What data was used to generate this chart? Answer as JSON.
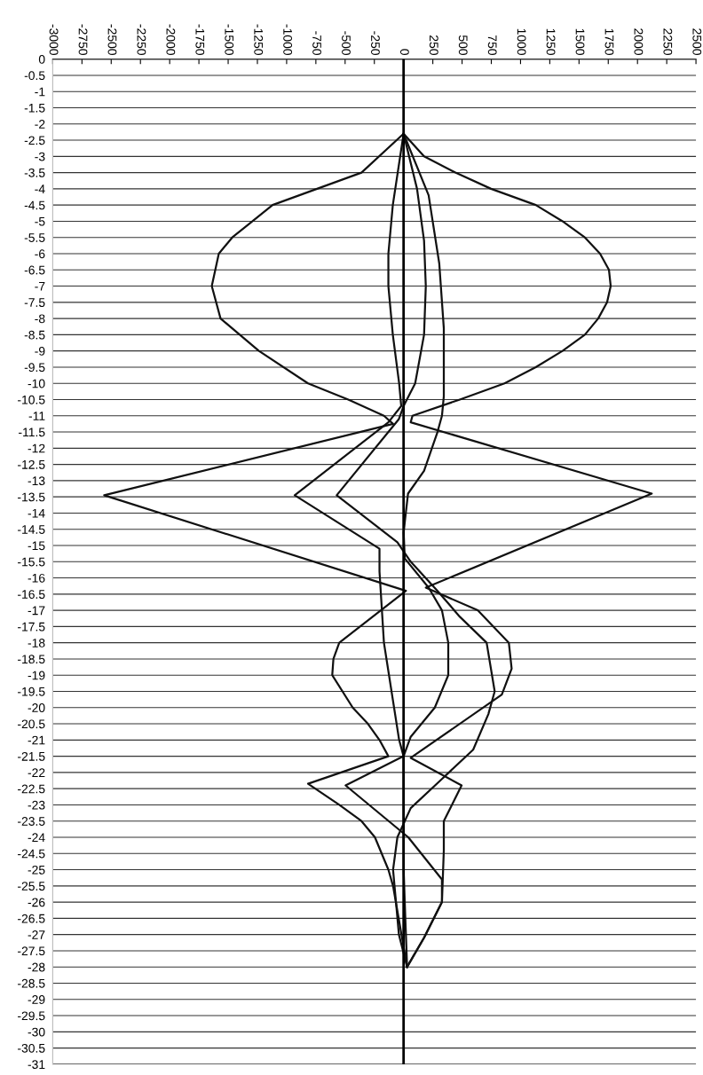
{
  "chart_data": {
    "type": "line",
    "xlim": [
      -3000,
      2500
    ],
    "xticks": [
      -3000,
      -2750,
      -2500,
      -2250,
      -2000,
      -1750,
      -1500,
      -1250,
      -1000,
      -750,
      -500,
      -250,
      0,
      250,
      500,
      750,
      1000,
      1250,
      1500,
      1750,
      2000,
      2250,
      2500
    ],
    "ylim": [
      -31,
      0
    ],
    "yticks": [
      0,
      -0.5,
      -1,
      -1.5,
      -2,
      -2.5,
      -3,
      -3.5,
      -4,
      -4.5,
      -5,
      -5.5,
      -6,
      -6.5,
      -7,
      -7.5,
      -8,
      -8.5,
      -9,
      -9.5,
      -10,
      -10.5,
      -11,
      -11.5,
      -12,
      -12.5,
      -13,
      -13.5,
      -14,
      -14.5,
      -15,
      -15.5,
      -16,
      -16.5,
      -17,
      -17.5,
      -18,
      -18.5,
      -19,
      -19.5,
      -20,
      -20.5,
      -21,
      -21.5,
      -22,
      -22.5,
      -23,
      -23.5,
      -24,
      -24.5,
      -25,
      -25.5,
      -26,
      -26.5,
      -27,
      -27.5,
      -28,
      -28.5,
      -29,
      -29.5,
      -30,
      -30.5,
      -31
    ],
    "grid": "y",
    "marker": "none",
    "line_style": "solid",
    "ref_lines": [
      {
        "axis": "x",
        "value": 0,
        "color": "#000000"
      }
    ],
    "series": [
      {
        "color": "#111111",
        "x": [
          0,
          -360,
          -1120,
          -1465,
          -1580,
          -1640,
          -1565,
          -1237,
          -817,
          -473,
          -168,
          -90,
          -2560,
          20,
          -550,
          -600,
          -610,
          -435,
          -305,
          -206,
          -130,
          -817,
          -550,
          -360,
          -245,
          -130,
          -90,
          30
        ],
        "values": [
          -2.3,
          -3.5,
          -4.5,
          -5.5,
          -6,
          -7,
          -8,
          -9,
          -10,
          -10.5,
          -11,
          -11.25,
          -13.45,
          -16.4,
          -18,
          -18.5,
          -19,
          -20,
          -20.5,
          -21,
          -21.5,
          -22.35,
          -23,
          -23.5,
          -24,
          -25,
          -25.5,
          -28
        ]
      },
      {
        "color": "#111111",
        "x": [
          0,
          175,
          443,
          748,
          1130,
          1359,
          1550,
          1680,
          1756,
          1771,
          1740,
          1664,
          1550,
          1359,
          1130,
          863,
          481,
          76,
          61,
          2122,
          190,
          634,
          900,
          924,
          840,
          61,
          496,
          344,
          344,
          328,
          175,
          30
        ],
        "values": [
          -2.3,
          -3,
          -3.5,
          -4,
          -4.5,
          -5,
          -5.5,
          -6,
          -6.5,
          -7,
          -7.5,
          -8,
          -8.5,
          -9,
          -9.5,
          -10,
          -10.5,
          -11,
          -11.2,
          -13.4,
          -16.3,
          -17,
          -18,
          -18.8,
          -19.6,
          -21.55,
          -22.4,
          -23.5,
          -24.4,
          -26,
          -27.1,
          -28
        ]
      },
      {
        "color": "#111111",
        "x": [
          0,
          -92,
          -130,
          -130,
          -92,
          -38,
          -20,
          -130,
          -931,
          -206,
          -206,
          -168,
          -38,
          0,
          0,
          30
        ],
        "values": [
          -2.3,
          -4.5,
          -6,
          -7,
          -8.5,
          -10,
          -10.7,
          -11.2,
          -13.45,
          -15.1,
          -15.8,
          -18,
          -21,
          -21.5,
          -25,
          -28
        ]
      },
      {
        "color": "#111111",
        "x": [
          0,
          115,
          175,
          190,
          175,
          99,
          0,
          -40,
          -572,
          -53,
          61,
          290,
          481,
          710,
          779,
          725,
          595,
          328,
          61,
          -53,
          -90,
          -40,
          30
        ],
        "values": [
          -2.3,
          -4,
          -5.6,
          -7,
          -8.5,
          -10,
          -10.7,
          -11.1,
          -13.45,
          -14.9,
          -15.5,
          -16.4,
          -17.2,
          -18,
          -19.5,
          -20.2,
          -21.3,
          -22.2,
          -23.1,
          -24,
          -25,
          -27,
          -28
        ]
      },
      {
        "color": "#111111",
        "x": [
          0,
          214,
          305,
          344,
          344,
          328,
          290,
          175,
          38,
          0,
          10,
          214,
          328,
          382,
          382,
          267,
          61,
          0,
          -496,
          40,
          328,
          328,
          175,
          30
        ],
        "values": [
          -2.3,
          -4.2,
          -6.3,
          -8.3,
          -10.4,
          -11,
          -11.5,
          -12.7,
          -13.4,
          -14.6,
          -15.4,
          -16.3,
          -17,
          -18,
          -19,
          -20,
          -20.9,
          -21.5,
          -22.4,
          -24,
          -25.3,
          -26,
          -27.1,
          -28
        ]
      }
    ]
  }
}
